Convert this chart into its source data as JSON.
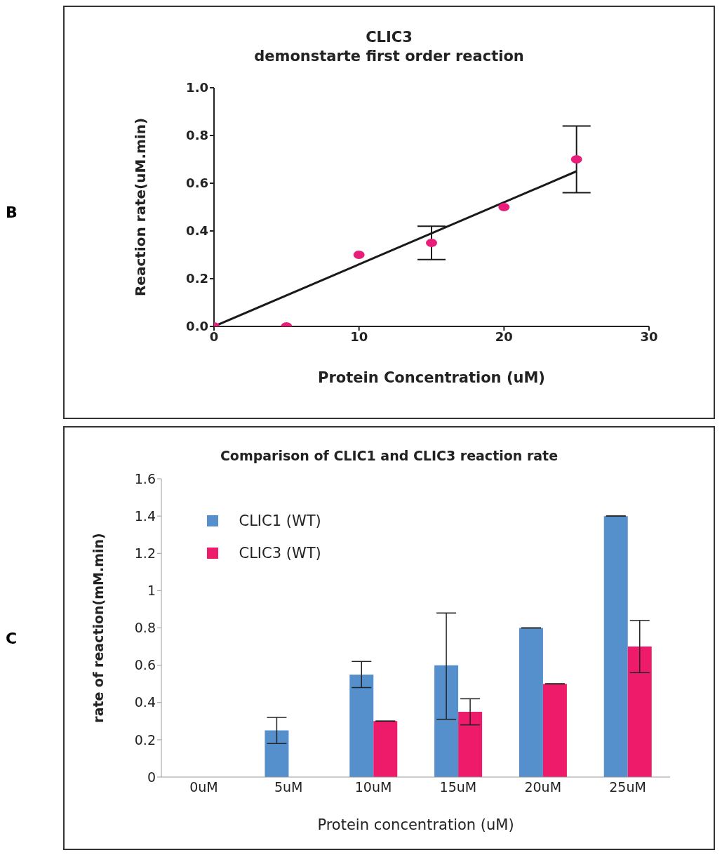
{
  "chart_data": [
    {
      "type": "scatter",
      "title": "CLIC3",
      "subtitle": "demonstarte first order reaction",
      "xlabel": "Protein Concentration (uM)",
      "ylabel": "Reaction rate(uM.min)",
      "annotations": [
        "B"
      ],
      "x": [
        0,
        5,
        10,
        15,
        20,
        25
      ],
      "series": [
        {
          "type": "scatter",
          "color": "#e91e7a",
          "values": [
            0,
            0,
            0.3,
            0.35,
            0.5,
            0.7
          ],
          "errors": [
            null,
            null,
            null,
            [
              0.28,
              0.42
            ],
            null,
            [
              0.56,
              0.84
            ]
          ],
          "marker": "circle"
        },
        {
          "type": "line",
          "color": "#1a1a1a",
          "x": [
            0,
            25
          ],
          "values": [
            0,
            0.65
          ],
          "marker": "none"
        }
      ],
      "xlim": [
        0,
        30
      ],
      "xticks": [
        0,
        10,
        20,
        30
      ],
      "ylim": [
        0,
        1
      ],
      "yticks": [
        {
          "value": 0,
          "label": "0.0"
        },
        {
          "value": 0.2,
          "label": "0.2"
        },
        {
          "value": 0.4,
          "label": "0.4"
        },
        {
          "value": 0.6,
          "label": "0.6"
        },
        {
          "value": 0.8,
          "label": "0.8"
        },
        {
          "value": 1,
          "label": "1.0"
        }
      ],
      "grid": false,
      "legend": false
    },
    {
      "type": "bar",
      "title": "Comparison of CLIC1 and CLIC3 reaction rate",
      "xlabel": "Protein concentration (uM)",
      "ylabel": "rate of reaction(mM.min)",
      "annotations": [
        "C"
      ],
      "categories": [
        "0uM",
        "5uM",
        "10uM",
        "15uM",
        "20uM",
        "25uM"
      ],
      "series": [
        {
          "name": "CLIC1 (WT)",
          "color": "#5590cc",
          "values": [
            0,
            0.25,
            0.55,
            0.6,
            0.8,
            1.4
          ],
          "errors": [
            null,
            0.07,
            0.07,
            [
              0.31,
              0.88
            ],
            0,
            0
          ]
        },
        {
          "name": "CLIC3 (WT)",
          "color": "#ee1b6a",
          "values": [
            0,
            0,
            0.3,
            0.35,
            0.5,
            0.7
          ],
          "errors": [
            null,
            null,
            0,
            0.07,
            0,
            0.14
          ]
        }
      ],
      "ylim": [
        0,
        1.6
      ],
      "yticks": [
        0,
        0.2,
        0.4,
        0.6,
        0.8,
        1,
        1.2,
        1.4,
        1.6
      ],
      "grid": false,
      "legend": "top left"
    }
  ]
}
